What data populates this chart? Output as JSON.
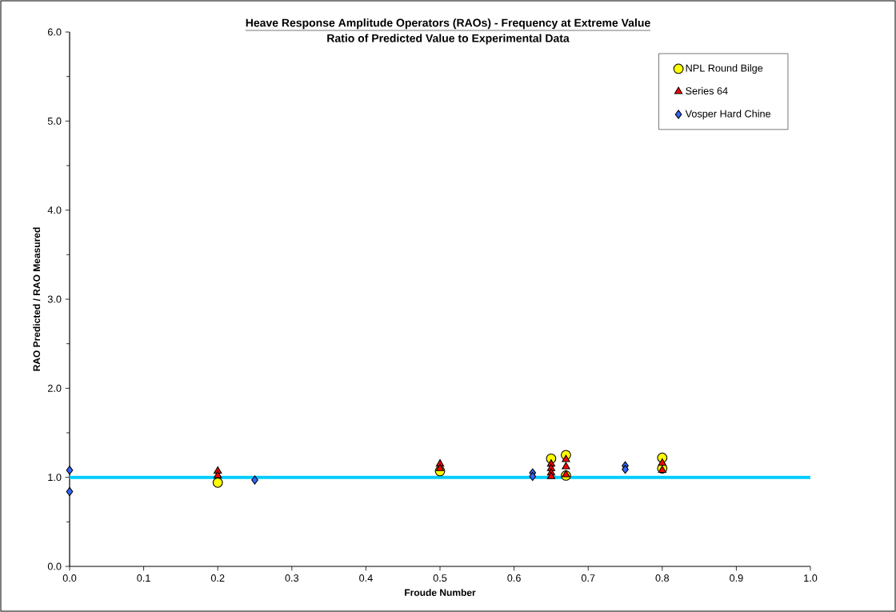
{
  "chart_data": {
    "type": "scatter",
    "title": "Heave Response Amplitude Operators (RAOs) - Frequency at Extreme Value",
    "subtitle": "Ratio of Predicted Value to Experimental Data",
    "xlabel": "Froude Number",
    "ylabel": "RAO Predicted / RAO Measured",
    "series": [
      {
        "name": "NPL Round Bilge",
        "color": "#ffff00",
        "marker": "circle",
        "x": [
          0.2,
          0.5,
          0.65,
          0.67,
          0.67,
          0.8,
          0.8
        ],
        "values": [
          0.94,
          1.07,
          1.21,
          1.25,
          1.02,
          1.22,
          1.1
        ]
      },
      {
        "name": "Series 64",
        "color": "#ff0000",
        "marker": "triangle",
        "x": [
          0.2,
          0.2,
          0.5,
          0.5,
          0.65,
          0.65,
          0.65,
          0.65,
          0.67,
          0.67,
          0.67,
          0.8,
          0.8
        ],
        "values": [
          1.07,
          1.02,
          1.15,
          1.1,
          1.15,
          1.1,
          1.05,
          1.01,
          1.2,
          1.12,
          1.03,
          1.16,
          1.08
        ]
      },
      {
        "name": "Vosper Hard Chine",
        "color": "#3366ff",
        "marker": "diamond",
        "x": [
          0.0,
          0.0,
          0.25,
          0.625,
          0.625,
          0.75,
          0.75
        ],
        "values": [
          1.08,
          0.84,
          0.97,
          1.05,
          1.01,
          1.13,
          1.09
        ]
      }
    ],
    "ref_lines": [
      {
        "axis": "y",
        "value": 1.0,
        "color": "#00ccff"
      }
    ],
    "xlim": [
      0,
      1
    ],
    "ylim": [
      0,
      6
    ],
    "xticks": [
      {
        "value": 0,
        "label": "0.0"
      },
      {
        "value": 0.1,
        "label": "0.1"
      },
      {
        "value": 0.2,
        "label": "0.2"
      },
      {
        "value": 0.3,
        "label": "0.3"
      },
      {
        "value": 0.4,
        "label": "0.4"
      },
      {
        "value": 0.5,
        "label": "0.5"
      },
      {
        "value": 0.6,
        "label": "0.6"
      },
      {
        "value": 0.7,
        "label": "0.7"
      },
      {
        "value": 0.8,
        "label": "0.8"
      },
      {
        "value": 0.9,
        "label": "0.9"
      },
      {
        "value": 1,
        "label": "1.0"
      }
    ],
    "yticks": [
      {
        "value": 0,
        "label": "0.0"
      },
      {
        "value": 1,
        "label": "1.0"
      },
      {
        "value": 2,
        "label": "2.0"
      },
      {
        "value": 3,
        "label": "3.0"
      },
      {
        "value": 4,
        "label": "4.0"
      },
      {
        "value": 5,
        "label": "5.0"
      },
      {
        "value": 6,
        "label": "6.0"
      }
    ],
    "grid": false,
    "legend": "top right"
  }
}
